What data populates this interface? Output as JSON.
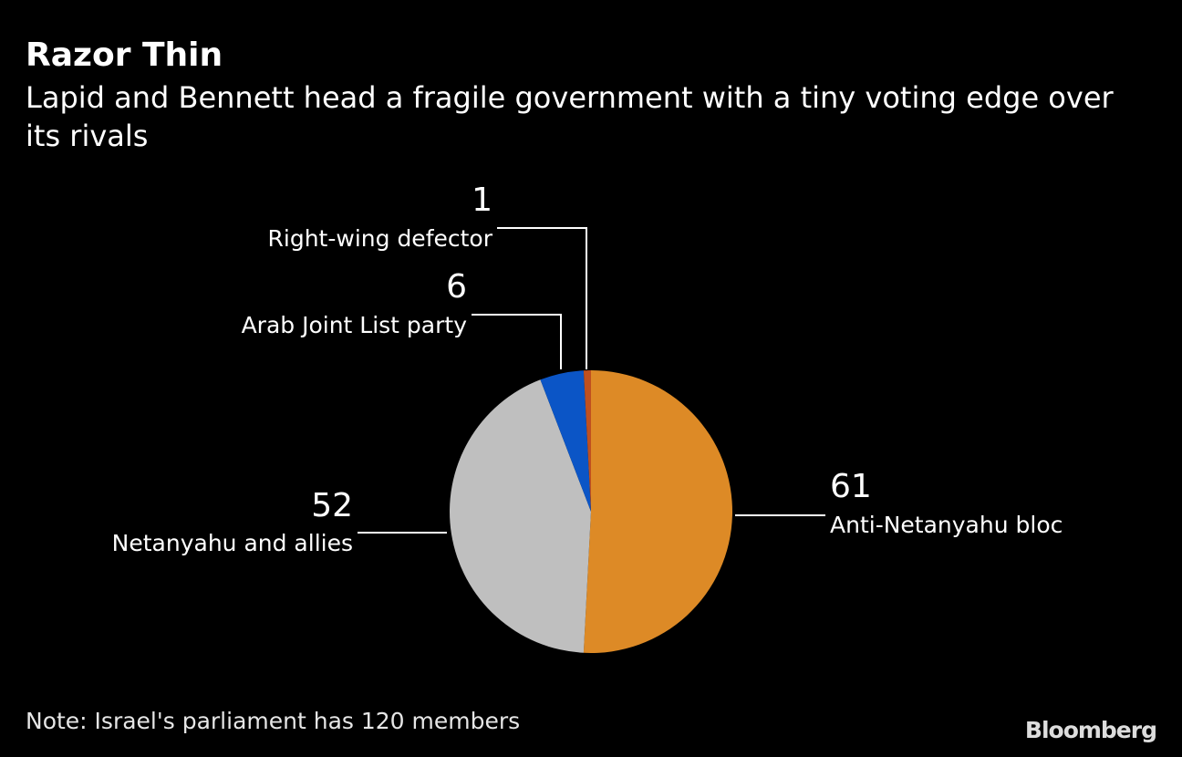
{
  "chart_data": {
    "type": "pie",
    "title": "Razor Thin",
    "subtitle": "Lapid and Bennett head a fragile government with a tiny voting edge over its rivals",
    "categories": [
      "Anti-Netanyahu bloc",
      "Netanyahu and allies",
      "Arab Joint List party",
      "Right-wing defector"
    ],
    "values": [
      61,
      52,
      6,
      1
    ],
    "colors": [
      "#dd8a26",
      "#bfbfbf",
      "#0b55c6",
      "#c0501f"
    ],
    "note": "Note: Israel's parliament has 120 members",
    "source": "Bloomberg"
  }
}
